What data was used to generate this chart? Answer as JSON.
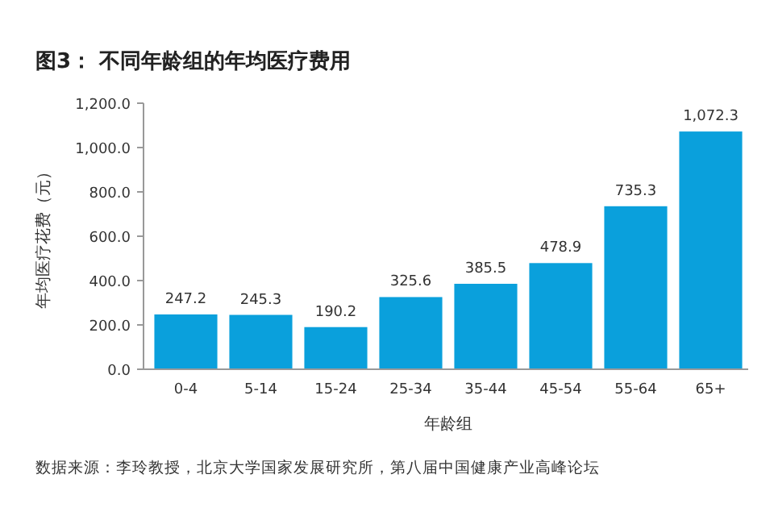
{
  "chart_data": {
    "type": "bar",
    "title": "图3： 不同年龄组的年均医疗费用",
    "xlabel": "年龄组",
    "ylabel": "年均医疗花费（元）",
    "categories": [
      "0-4",
      "5-14",
      "15-24",
      "25-34",
      "35-44",
      "45-54",
      "55-64",
      "65+"
    ],
    "values": [
      247.2,
      245.3,
      190.2,
      325.6,
      385.5,
      478.9,
      735.3,
      1072.3
    ],
    "value_labels": [
      "247.2",
      "245.3",
      "190.2",
      "325.6",
      "385.5",
      "478.9",
      "735.3",
      "1,072.3"
    ],
    "color": "#0aa0dc",
    "ylim": [
      0,
      1200
    ],
    "yticks": [
      {
        "value": 0,
        "label": "0.0"
      },
      {
        "value": 200,
        "label": "200.0"
      },
      {
        "value": 400,
        "label": "400.0"
      },
      {
        "value": 600,
        "label": "600.0"
      },
      {
        "value": 800,
        "label": "800.0"
      },
      {
        "value": 1000,
        "label": "1,000.0"
      },
      {
        "value": 1200,
        "label": "1,200.0"
      }
    ],
    "annotations": [
      "数据来源：李玲教授，北京大学国家发展研究所，第八届中国健康产业高峰论坛"
    ]
  }
}
